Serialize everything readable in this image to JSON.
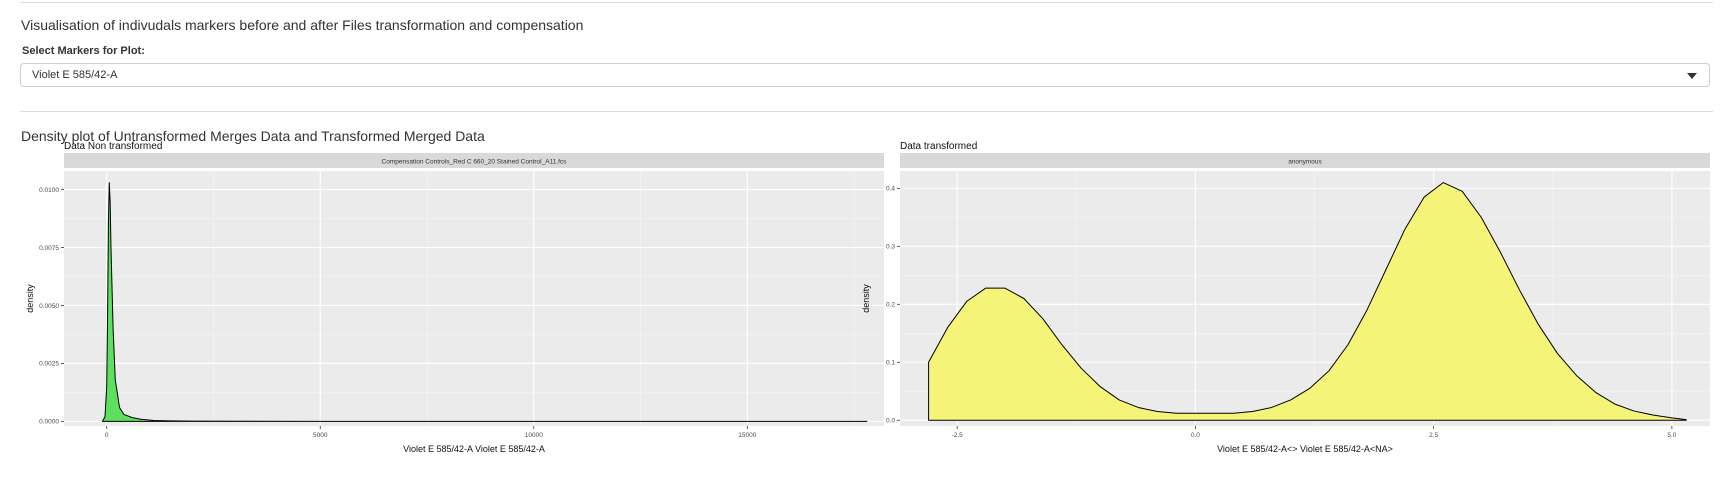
{
  "header": {
    "section_title": "Visualisation of indivudals markers before and after Files transformation and compensation",
    "select_label": "Select Markers for Plot:",
    "selected_marker": "Violet E 585/42-A",
    "density_title": "Density plot of Untransformed Merges Data and Transformed Merged Data"
  },
  "chart_data": [
    {
      "type": "area",
      "title": "Data Non transformed",
      "facet": "Compensation Controls_Red C 660_20 Stained Control_A11.fcs",
      "xlabel": "Violet E 585/42-A Violet E 585/42-A",
      "ylabel": "density",
      "xlim": [
        -1000,
        18200
      ],
      "ylim": [
        -0.0002,
        0.0108
      ],
      "x_ticks": [
        0,
        5000,
        10000,
        15000
      ],
      "x_tick_labels": [
        "0",
        "5000",
        "10000",
        "15000"
      ],
      "y_ticks": [
        0,
        0.0025,
        0.005,
        0.0075,
        0.01
      ],
      "y_tick_labels": [
        "0.0000",
        "0.0025",
        "0.0050",
        "0.0075",
        "0.0100"
      ],
      "fill": "#4ddf4f",
      "x": [
        -100,
        -40,
        0,
        20,
        40,
        60,
        80,
        100,
        150,
        200,
        300,
        400,
        600,
        800,
        1100,
        1500,
        2000,
        5000,
        10000,
        15000,
        17800
      ],
      "y": [
        0,
        0.0002,
        0.0015,
        0.0045,
        0.0085,
        0.0103,
        0.0095,
        0.0075,
        0.004,
        0.0018,
        0.0006,
        0.0003,
        0.00016,
        9e-05,
        4e-05,
        2e-05,
        1e-05,
        0,
        0,
        0,
        0
      ]
    },
    {
      "type": "area",
      "title": "Data transformed",
      "facet": "anonymous",
      "xlabel": "Violet E 585/42-A<> Violet E 585/42-A<NA>",
      "ylabel": "density",
      "xlim": [
        -3.1,
        5.4
      ],
      "ylim": [
        -0.01,
        0.43
      ],
      "x_ticks": [
        -2.5,
        0,
        2.5,
        5
      ],
      "x_tick_labels": [
        "-2.5",
        "0.0",
        "2.5",
        "5.0"
      ],
      "y_ticks": [
        0,
        0.1,
        0.2,
        0.3,
        0.4
      ],
      "y_tick_labels": [
        "0.0",
        "0.1",
        "0.2",
        "0.3",
        "0.4"
      ],
      "fill": "#f5f56b",
      "x": [
        -2.8,
        -2.8,
        -2.6,
        -2.4,
        -2.2,
        -2.0,
        -1.8,
        -1.6,
        -1.4,
        -1.2,
        -1.0,
        -0.8,
        -0.6,
        -0.4,
        -0.2,
        0.0,
        0.2,
        0.4,
        0.6,
        0.8,
        1.0,
        1.2,
        1.4,
        1.6,
        1.8,
        2.0,
        2.2,
        2.4,
        2.6,
        2.8,
        3.0,
        3.2,
        3.4,
        3.6,
        3.8,
        4.0,
        4.2,
        4.4,
        4.6,
        4.8,
        5.0,
        5.15
      ],
      "y": [
        0,
        0.1,
        0.16,
        0.205,
        0.228,
        0.228,
        0.21,
        0.175,
        0.13,
        0.09,
        0.058,
        0.035,
        0.022,
        0.015,
        0.012,
        0.012,
        0.012,
        0.012,
        0.015,
        0.022,
        0.035,
        0.055,
        0.085,
        0.13,
        0.19,
        0.26,
        0.33,
        0.385,
        0.41,
        0.395,
        0.35,
        0.29,
        0.225,
        0.165,
        0.115,
        0.077,
        0.048,
        0.028,
        0.016,
        0.009,
        0.004,
        0.001
      ]
    }
  ]
}
